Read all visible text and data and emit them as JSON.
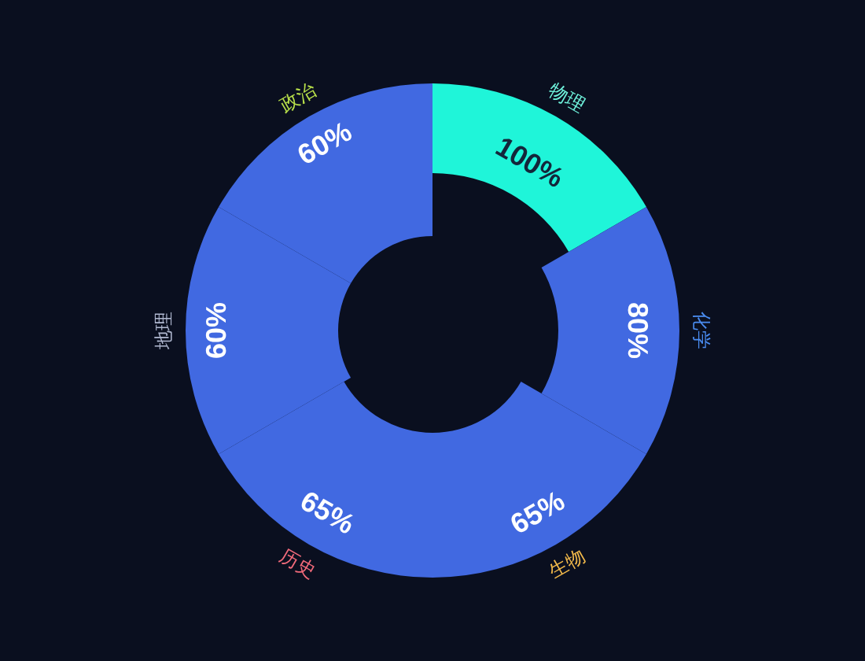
{
  "chart_data": {
    "type": "other",
    "categories": [
      "物理",
      "化学",
      "生物",
      "历史",
      "地理",
      "政治"
    ],
    "values": [
      100,
      80,
      65,
      65,
      60,
      60
    ],
    "value_labels": [
      "100%",
      "80%",
      "65%",
      "65%",
      "60%",
      "60%"
    ],
    "colors": [
      "#1ff5d9",
      "#4169e1",
      "#4169e1",
      "#4169e1",
      "#4169e1",
      "#4169e1"
    ]
  }
}
